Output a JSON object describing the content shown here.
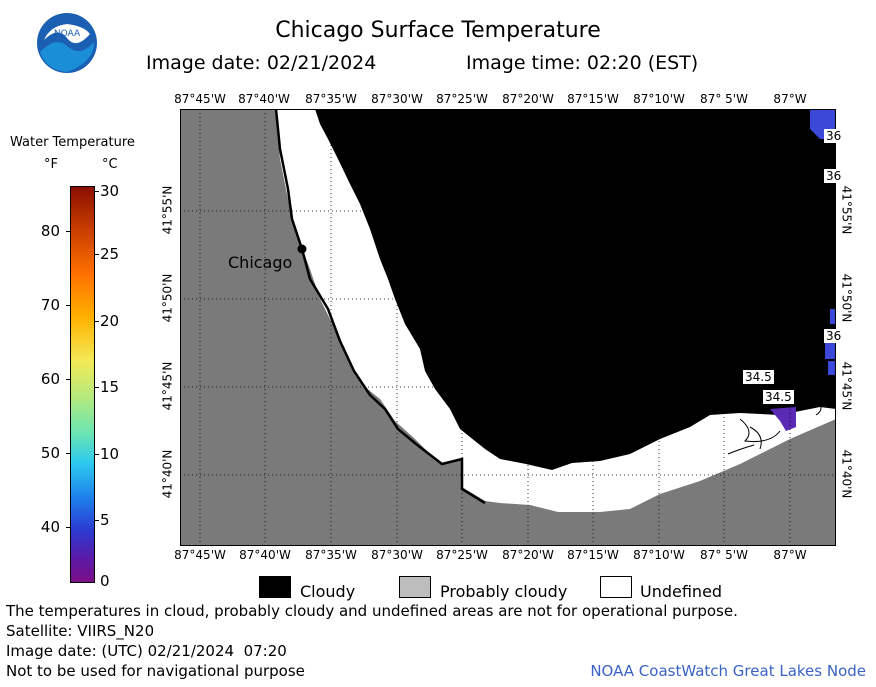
{
  "header": {
    "title": "Chicago Surface Temperature",
    "image_date": "Image date: 02/21/2024",
    "image_time": "Image time: 02:20 (EST)",
    "logo_text": "NOAA"
  },
  "map": {
    "lon_labels_top": [
      "87°45'W",
      "87°40'W",
      "87°35'W",
      "87°30'W",
      "87°25'W",
      "87°20'W",
      "87°15'W",
      "87°10'W",
      "87° 5'W",
      "87°W"
    ],
    "lon_labels_bottom": [
      "87°45'W",
      "87°40'W",
      "87°35'W",
      "87°30'W",
      "87°25'W",
      "87°20'W",
      "87°15'W",
      "87°10'W",
      "87° 5'W",
      "87°W"
    ],
    "lat_labels_left": [
      "41°55'N",
      "41°50'N",
      "41°45'N",
      "41°40'N"
    ],
    "lat_labels_right": [
      "41°55'N",
      "41°50'N",
      "41°45'N",
      "41°40'N"
    ],
    "city_label": "Chicago",
    "temp_labels": [
      "34.5",
      "34.5",
      "36",
      "36",
      "36",
      "36"
    ],
    "colors": {
      "land": "#7a7a7a",
      "cloud": "#000000",
      "undefined": "#ffffff",
      "cold_water": "#5a2ab5",
      "blue_water": "#3b48d8"
    }
  },
  "colorbar": {
    "title": "Water Temperature",
    "unit_f": "°F",
    "unit_c": "°C",
    "f_ticks": [
      "80",
      "70",
      "60",
      "50",
      "40"
    ],
    "c_ticks": [
      "30",
      "25",
      "20",
      "15",
      "10",
      "5",
      "0"
    ]
  },
  "legend": {
    "items": [
      {
        "label": "Cloudy",
        "color": "#000000"
      },
      {
        "label": "Probably cloudy",
        "color": "#bdbdbd"
      },
      {
        "label": "Undefined",
        "color": "#ffffff"
      }
    ]
  },
  "footer": {
    "line1": "The temperatures in cloud, probably cloudy and undefined areas are not for operational purpose.",
    "line2": "Satellite: VIIRS_N20",
    "line3": "Image date: (UTC) 02/21/2024  07:20",
    "line4": "Not to be used for navigational purpose",
    "credit": "NOAA CoastWatch Great Lakes Node"
  }
}
